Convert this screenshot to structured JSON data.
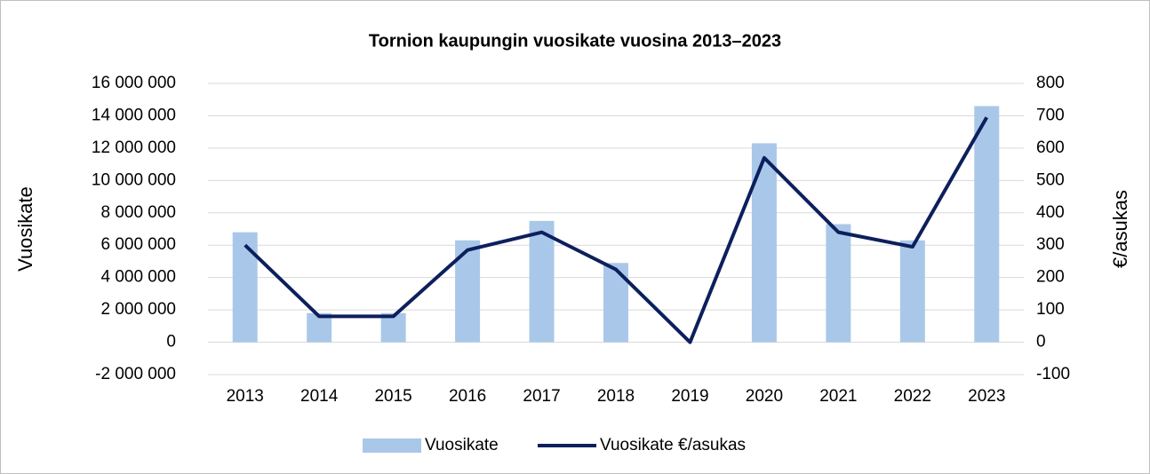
{
  "chart_data": {
    "type": "bar_line",
    "title": "Tornion kaupungin vuosikate vuosina 2013–2023",
    "ylabel": "Vuosikate",
    "y2label": "€/asukas",
    "categories": [
      "2013",
      "2014",
      "2015",
      "2016",
      "2017",
      "2018",
      "2019",
      "2020",
      "2021",
      "2022",
      "2023"
    ],
    "series": [
      {
        "name": "Vuosikate",
        "type": "bar",
        "color": "#a9c8e9",
        "axis": "y",
        "values": [
          6800000,
          1800000,
          1800000,
          6300000,
          7500000,
          4900000,
          0,
          12300000,
          7300000,
          6300000,
          14600000
        ]
      },
      {
        "name": "Vuosikate €/asukas",
        "type": "line",
        "color": "#0d1f5c",
        "axis": "y2",
        "values": [
          300,
          80,
          80,
          285,
          340,
          225,
          0,
          570,
          340,
          295,
          695
        ]
      }
    ],
    "ylim": [
      -2000000,
      16000000
    ],
    "yticks": [
      {
        "value": -2000000,
        "label": "-2 000 000"
      },
      0,
      {
        "value": 2000000,
        "label": "2 000 000"
      },
      {
        "value": 4000000,
        "label": "4 000 000"
      },
      {
        "value": 6000000,
        "label": "6 000 000"
      },
      {
        "value": 8000000,
        "label": "8 000 000"
      },
      {
        "value": 10000000,
        "label": "10 000 000"
      },
      {
        "value": 12000000,
        "label": "12 000 000"
      },
      {
        "value": 14000000,
        "label": "14 000 000"
      },
      {
        "value": 16000000,
        "label": "16 000 000"
      }
    ],
    "y2lim": [
      -100,
      800
    ],
    "y2ticks": [
      -100,
      0,
      100,
      200,
      300,
      400,
      500,
      600,
      700,
      800
    ],
    "grid": true,
    "legend": "bottom"
  }
}
